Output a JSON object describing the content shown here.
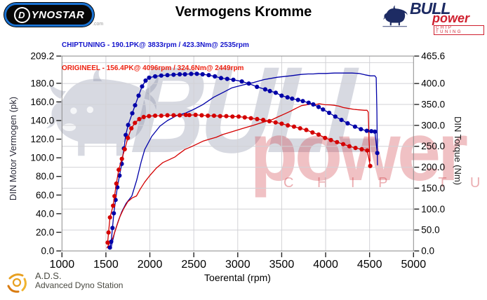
{
  "header": {
    "dynostar_logo": {
      "d": "D",
      "rest": "YNOSTAR",
      "suffix": ".com"
    },
    "title": "Vermogens Kromme",
    "legend": [
      {
        "label": "CHIPTUNING",
        "stats": " - 190.1PK@ 3833rpm / 423.3Nm@ 2535rpm",
        "color": "#1414cc"
      },
      {
        "label": "ORIGINEEL",
        "stats": " - 156.4PK@ 4096rpm / 324.6Nm@ 2449rpm",
        "color": "#ee2211"
      }
    ],
    "bull_logo": {
      "bull": "BULL",
      "power": "power",
      "chip": "CHIP TUNING"
    }
  },
  "footer": {
    "ads_abbr": "A.D.S.",
    "ads_name": "Advanced Dyno Station"
  },
  "colors": {
    "chiptuning": "#0000a8",
    "origineel": "#d40000",
    "grid": "#d2d2d6",
    "frame": "#8a8a8a",
    "tick": "#222222",
    "watermark_gray": "rgba(122,129,155,0.32)",
    "watermark_red": "rgba(205,50,60,0.30)"
  },
  "chart_data": {
    "type": "line",
    "title": "Vermogens Kromme",
    "xlabel": "Toerental (rpm)",
    "ylabel_left": "DIN Motor Vermogen (pk)",
    "ylabel_right": "DIN Torque (Nm)",
    "x_range": [
      1000,
      5000
    ],
    "left_range": [
      0,
      209.2
    ],
    "right_range": [
      0,
      465.6
    ],
    "x_tick_labels": [
      "1000",
      "1500",
      "2000",
      "2500",
      "3000",
      "3500",
      "4000",
      "4500",
      "5000"
    ],
    "left_tick_labels": [
      "209.2",
      "180.0",
      "160.0",
      "140.0",
      "120.0",
      "100.0",
      "80.0",
      "60.0",
      "40.0",
      "20.0",
      "0.0"
    ],
    "right_tick_labels": [
      "465.6",
      "400.0",
      "350.0",
      "300.0",
      "250.0",
      "200.0",
      "150.0",
      "100.0",
      "50.0",
      "0.0"
    ],
    "grid": {
      "x_step_rpm": 500,
      "y_step_nm": 50
    },
    "legend_position": "top-left-above-plot",
    "peaks": {
      "chiptuning": {
        "power_pk": 190.1,
        "power_rpm": 3833,
        "torque_nm": 423.3,
        "torque_rpm": 2535
      },
      "origineel": {
        "power_pk": 156.4,
        "power_rpm": 4096,
        "torque_nm": 324.6,
        "torque_rpm": 2449
      }
    },
    "watermark": {
      "bull_text": "BULL",
      "power_text": "power",
      "chip_text": "C H I P   T U N I N G"
    },
    "series": [
      {
        "name": "chiptuning-power",
        "axis": "left",
        "unit": "pk",
        "color": "#0000a8",
        "markers": false,
        "points": [
          [
            1555,
            2
          ],
          [
            1570,
            8
          ],
          [
            1600,
            20
          ],
          [
            1640,
            32
          ],
          [
            1680,
            42
          ],
          [
            1730,
            51
          ],
          [
            1795,
            59
          ],
          [
            1850,
            76
          ],
          [
            1902,
            96
          ],
          [
            1942,
            109
          ],
          [
            2022,
            123
          ],
          [
            2115,
            134
          ],
          [
            2200,
            140
          ],
          [
            2300,
            145
          ],
          [
            2406,
            148
          ],
          [
            2500,
            152
          ],
          [
            2600,
            157
          ],
          [
            2726,
            165
          ],
          [
            2850,
            171
          ],
          [
            2932,
            175
          ],
          [
            3050,
            178
          ],
          [
            3186,
            181
          ],
          [
            3300,
            184
          ],
          [
            3453,
            186.5
          ],
          [
            3600,
            188
          ],
          [
            3720,
            189.5
          ],
          [
            3800,
            190
          ],
          [
            3860,
            190
          ],
          [
            3920,
            190.5
          ],
          [
            4000,
            190.5
          ],
          [
            4100,
            191
          ],
          [
            4200,
            191
          ],
          [
            4300,
            191
          ],
          [
            4380,
            190.5
          ],
          [
            4450,
            189
          ],
          [
            4510,
            188
          ],
          [
            4560,
            188
          ],
          [
            4575,
            186
          ],
          [
            4583,
            150
          ],
          [
            4590,
            92
          ]
        ]
      },
      {
        "name": "origineel-power",
        "axis": "left",
        "unit": "pk",
        "color": "#d40000",
        "markers": false,
        "points": [
          [
            1510,
            3
          ],
          [
            1540,
            8
          ],
          [
            1580,
            14
          ],
          [
            1620,
            26
          ],
          [
            1660,
            37
          ],
          [
            1700,
            45
          ],
          [
            1750,
            53
          ],
          [
            1800,
            57
          ],
          [
            1848,
            59
          ],
          [
            1888,
            66
          ],
          [
            1942,
            74
          ],
          [
            2000,
            81
          ],
          [
            2075,
            89
          ],
          [
            2150,
            95
          ],
          [
            2220,
            98
          ],
          [
            2288,
            101
          ],
          [
            2328,
            104
          ],
          [
            2400,
            109
          ],
          [
            2475,
            112
          ],
          [
            2542,
            115
          ],
          [
            2608,
            118
          ],
          [
            2680,
            120
          ],
          [
            2754,
            122
          ],
          [
            2830,
            125
          ],
          [
            2900,
            127
          ],
          [
            2968,
            129
          ],
          [
            3040,
            131
          ],
          [
            3110,
            133
          ],
          [
            3182,
            135
          ],
          [
            3250,
            137
          ],
          [
            3320,
            139
          ],
          [
            3392,
            141
          ],
          [
            3460,
            144
          ],
          [
            3530,
            147
          ],
          [
            3600,
            150
          ],
          [
            3660,
            153
          ],
          [
            3726,
            156
          ],
          [
            3790,
            157
          ],
          [
            3850,
            158
          ],
          [
            3880,
            157
          ],
          [
            3928,
            158
          ],
          [
            3990,
            157
          ],
          [
            4050,
            156.8
          ],
          [
            4096,
            156.4
          ],
          [
            4150,
            155.5
          ],
          [
            4200,
            154
          ],
          [
            4258,
            153
          ],
          [
            4320,
            152
          ],
          [
            4380,
            151.5
          ],
          [
            4440,
            151
          ],
          [
            4471,
            151
          ],
          [
            4485,
            149
          ],
          [
            4494,
            120
          ],
          [
            4505,
            96
          ]
        ]
      },
      {
        "name": "chiptuning-torque",
        "axis": "right",
        "unit": "Nm",
        "color": "#0000a8",
        "markers": true,
        "points": [
          [
            1545,
            8
          ],
          [
            1560,
            22
          ],
          [
            1575,
            55
          ],
          [
            1590,
            90
          ],
          [
            1610,
            122
          ],
          [
            1630,
            152
          ],
          [
            1655,
            180
          ],
          [
            1680,
            208
          ],
          [
            1705,
            245
          ],
          [
            1726,
            277
          ],
          [
            1753,
            301
          ],
          [
            1800,
            329
          ],
          [
            1832,
            348
          ],
          [
            1872,
            371
          ],
          [
            1912,
            393
          ],
          [
            1952,
            407
          ],
          [
            1992,
            414
          ],
          [
            2060,
            417
          ],
          [
            2130,
            419
          ],
          [
            2200,
            420
          ],
          [
            2270,
            421
          ],
          [
            2340,
            422
          ],
          [
            2400,
            422
          ],
          [
            2470,
            423
          ],
          [
            2535,
            423.3
          ],
          [
            2600,
            422
          ],
          [
            2670,
            420
          ],
          [
            2740,
            417
          ],
          [
            2810,
            413
          ],
          [
            2880,
            411
          ],
          [
            2950,
            409
          ],
          [
            3046,
            405
          ],
          [
            3126,
            400
          ],
          [
            3219,
            392
          ],
          [
            3312,
            386
          ],
          [
            3366,
            382
          ],
          [
            3432,
            378
          ],
          [
            3499,
            371
          ],
          [
            3566,
            367
          ],
          [
            3619,
            364
          ],
          [
            3686,
            361
          ],
          [
            3740,
            358
          ],
          [
            3806,
            354
          ],
          [
            3859,
            350
          ],
          [
            3920,
            344
          ],
          [
            3970,
            338
          ],
          [
            4040,
            330
          ],
          [
            4110,
            321
          ],
          [
            4180,
            313
          ],
          [
            4250,
            305
          ],
          [
            4334,
            297
          ],
          [
            4401,
            291
          ],
          [
            4468,
            287
          ],
          [
            4520,
            286
          ],
          [
            4560,
            285
          ],
          [
            4587,
            234
          ]
        ]
      },
      {
        "name": "origineel-torque",
        "axis": "right",
        "unit": "Nm",
        "color": "#d40000",
        "markers": true,
        "points": [
          [
            1520,
            20
          ],
          [
            1530,
            44
          ],
          [
            1546,
            80
          ],
          [
            1582,
            108
          ],
          [
            1598,
            131
          ],
          [
            1619,
            161
          ],
          [
            1646,
            194
          ],
          [
            1682,
            220
          ],
          [
            1714,
            243
          ],
          [
            1750,
            270
          ],
          [
            1790,
            293
          ],
          [
            1830,
            306
          ],
          [
            1880,
            315
          ],
          [
            1930,
            320
          ],
          [
            1990,
            322
          ],
          [
            2060,
            323
          ],
          [
            2130,
            323
          ],
          [
            2200,
            324
          ],
          [
            2270,
            324
          ],
          [
            2340,
            324
          ],
          [
            2410,
            325
          ],
          [
            2449,
            324.6
          ],
          [
            2520,
            325
          ],
          [
            2590,
            324
          ],
          [
            2660,
            323
          ],
          [
            2730,
            323
          ],
          [
            2800,
            322
          ],
          [
            2870,
            322
          ],
          [
            2940,
            321
          ],
          [
            3010,
            321
          ],
          [
            3080,
            319
          ],
          [
            3150,
            317
          ],
          [
            3220,
            315
          ],
          [
            3290,
            313
          ],
          [
            3360,
            310
          ],
          [
            3430,
            307
          ],
          [
            3500,
            304
          ],
          [
            3570,
            300
          ],
          [
            3640,
            297
          ],
          [
            3710,
            293
          ],
          [
            3780,
            289
          ],
          [
            3850,
            283
          ],
          [
            3920,
            278
          ],
          [
            3993,
            270
          ],
          [
            4060,
            265
          ],
          [
            4130,
            260
          ],
          [
            4200,
            255
          ],
          [
            4270,
            250
          ],
          [
            4340,
            246
          ],
          [
            4410,
            243
          ],
          [
            4474,
            240
          ],
          [
            4507,
            203
          ]
        ]
      }
    ]
  }
}
